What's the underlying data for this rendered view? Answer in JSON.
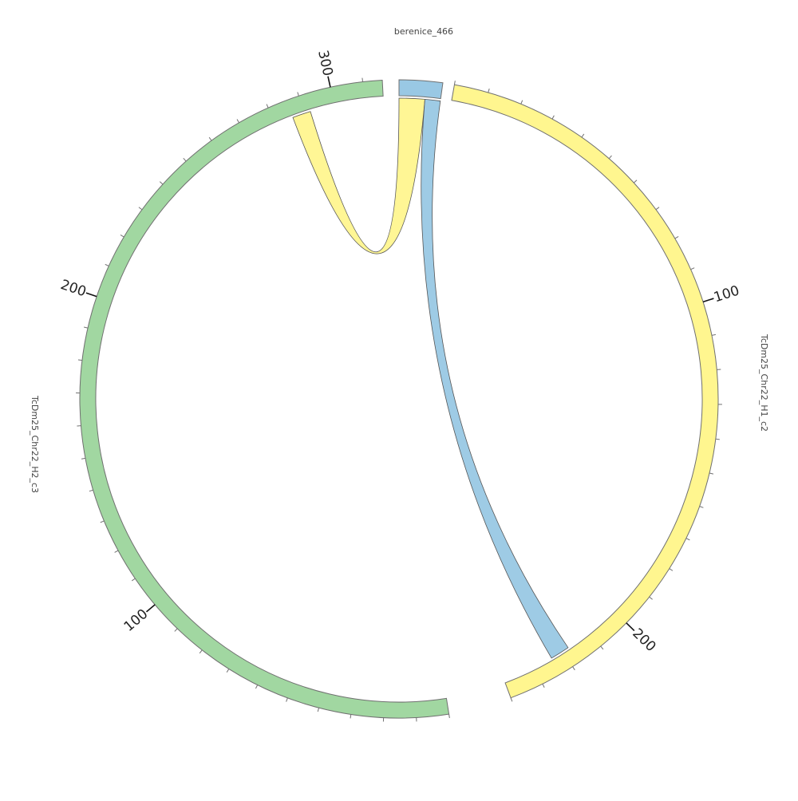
{
  "diagram": {
    "type": "chord",
    "segments": [
      {
        "id": "h1",
        "label": "TcDm25_Chr22_H1_c2",
        "color": "#fff68f",
        "length": 240,
        "ticks": [
          {
            "value": 100,
            "label": "100"
          },
          {
            "value": 200,
            "label": "200"
          }
        ]
      },
      {
        "id": "h2",
        "label": "TcDm25_Chr22_H2_c3",
        "color": "#a1d7a1",
        "length": 316,
        "ticks": [
          {
            "value": 100,
            "label": "100"
          },
          {
            "value": 200,
            "label": "200"
          },
          {
            "value": 300,
            "label": "300"
          }
        ]
      },
      {
        "id": "ber",
        "label": "berenice_466",
        "color": "#99c8e4",
        "length": 16,
        "ticks": []
      }
    ],
    "links": [
      {
        "source": "h2",
        "source_range": [
          286,
          292
        ],
        "target": "ber",
        "target_range": [
          0,
          10
        ],
        "color": "#fff68f"
      },
      {
        "source": "h1",
        "source_range": [
          218,
          224
        ],
        "target": "ber",
        "target_range": [
          10,
          16
        ],
        "color": "#99c8e4"
      }
    ],
    "tick_interval": 10
  }
}
